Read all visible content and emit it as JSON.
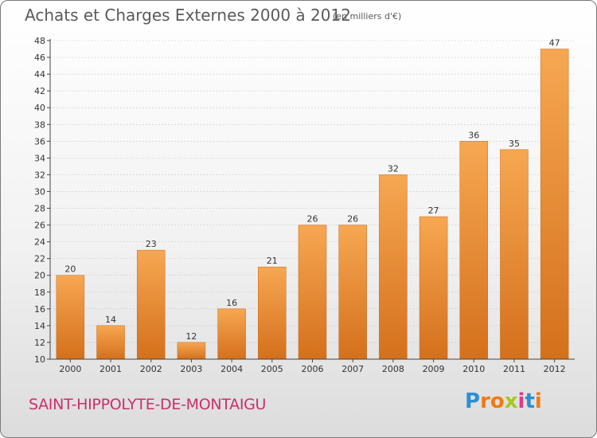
{
  "header": {
    "title": "Achats et Charges Externes 2000 à 2012",
    "unit": "(en milliers d'€)"
  },
  "footer": {
    "commune": "SAINT-HIPPOLYTE-DE-MONTAIGU",
    "brand": {
      "letters": [
        "P",
        "r",
        "o",
        "x",
        "i",
        "t",
        "i"
      ],
      "colors": [
        "#2a8fd6",
        "#f07a10",
        "#f07a10",
        "#a4c81f",
        "#e03a8c",
        "#2a8fd6",
        "#f07a10"
      ]
    }
  },
  "colors": {
    "bar_top": "#f7a752",
    "bar_bottom": "#d4701c",
    "axis": "#444444",
    "grid": "#cccccc"
  },
  "chart_data": {
    "type": "bar",
    "categories": [
      "2000",
      "2001",
      "2002",
      "2003",
      "2004",
      "2005",
      "2006",
      "2007",
      "2008",
      "2009",
      "2010",
      "2011",
      "2012"
    ],
    "values": [
      20,
      14,
      23,
      12,
      16,
      21,
      26,
      26,
      32,
      27,
      36,
      35,
      47
    ],
    "data_labels": [
      "20",
      "14",
      "23",
      "12",
      "16",
      "21",
      "26",
      "26",
      "32",
      "27",
      "36",
      "35",
      "47"
    ],
    "y_ticks": [
      "10",
      "12",
      "14",
      "16",
      "18",
      "20",
      "22",
      "24",
      "26",
      "28",
      "30",
      "32",
      "34",
      "36",
      "38",
      "40",
      "42",
      "44",
      "46",
      "48"
    ],
    "ylim": [
      10,
      48
    ],
    "grid": true,
    "legend": "none"
  }
}
